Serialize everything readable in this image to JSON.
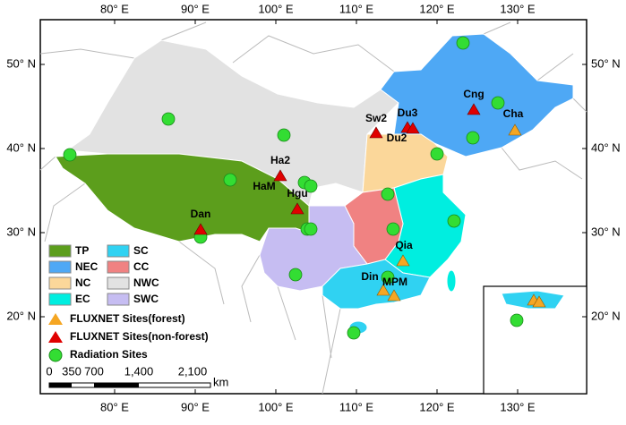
{
  "map": {
    "lon_ticks": [
      {
        "value": 80,
        "label": "80° E"
      },
      {
        "value": 90,
        "label": "90° E"
      },
      {
        "value": 100,
        "label": "100° E"
      },
      {
        "value": 110,
        "label": "110° E"
      },
      {
        "value": 120,
        "label": "120° E"
      },
      {
        "value": 130,
        "label": "130° E"
      }
    ],
    "lat_ticks": [
      {
        "value": 50,
        "label": "50° N"
      },
      {
        "value": 40,
        "label": "40° N"
      },
      {
        "value": 30,
        "label": "30° N"
      },
      {
        "value": 20,
        "label": "20° N"
      }
    ],
    "regions": [
      {
        "name": "TP",
        "color": "#5c9e1c"
      },
      {
        "name": "NEC",
        "color": "#4ea8f5"
      },
      {
        "name": "NC",
        "color": "#fbd79a"
      },
      {
        "name": "EC",
        "color": "#00eee0"
      },
      {
        "name": "SC",
        "color": "#30d2f2"
      },
      {
        "name": "CC",
        "color": "#f08282"
      },
      {
        "name": "NWC",
        "color": "#e2e2e2"
      },
      {
        "name": "SWC",
        "color": "#c6bdf2"
      }
    ],
    "markers": [
      {
        "name": "FLUXNET Sites(forest)",
        "color": "#f5a623"
      },
      {
        "name": "FLUXNET Sites(non-forest)",
        "color": "#e00000"
      },
      {
        "name": "Radiation Sites",
        "color": "#33dd33"
      }
    ],
    "site_labels": [
      "Cng",
      "Sw2",
      "Du3",
      "Cha",
      "Du2",
      "Ha2",
      "HaM",
      "Hgu",
      "Dan",
      "Qia",
      "Din",
      "MPM"
    ],
    "scale_bar": {
      "labels": [
        "0",
        "350",
        "700",
        "1,400",
        "2,100"
      ],
      "unit": "km"
    }
  }
}
